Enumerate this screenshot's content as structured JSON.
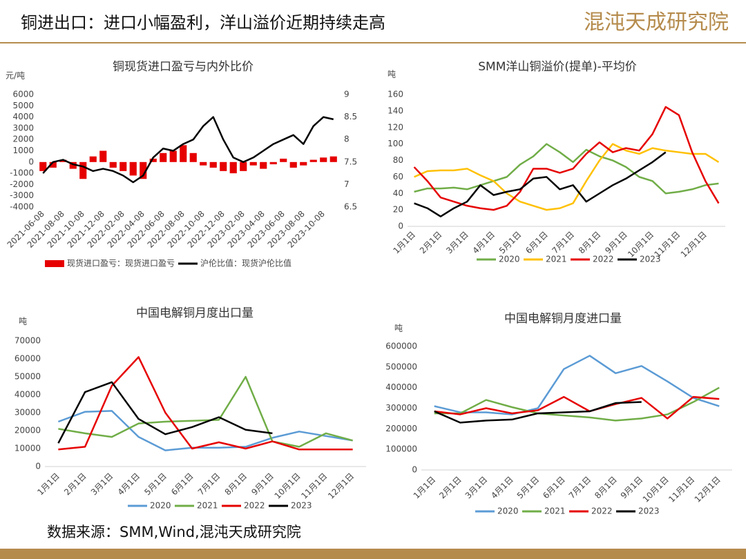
{
  "header": {
    "title": "铜进出口：进口小幅盈利，洋山溢价近期持续走高",
    "logo": "混沌天成研究院"
  },
  "source": "数据来源：SMM,Wind,混沌天成研究院",
  "chart_data": [
    {
      "type": "bar_line",
      "title": "铜现货进口盈亏与内外比价",
      "y_label": "元/吨",
      "categories": [
        "2021-06-08",
        null,
        "2021-08-08",
        null,
        "2021-10-08",
        null,
        "2021-12-08",
        null,
        "2022-02-08",
        null,
        "2022-04-08",
        null,
        "2022-06-08",
        null,
        "2022-08-08",
        null,
        "2022-10-08",
        null,
        "2022-12-08",
        null,
        "2023-02-08",
        null,
        "2023-04-08",
        null,
        "2023-06-08",
        null,
        "2023-08-08",
        null,
        "2023-10-08",
        null
      ],
      "series": [
        {
          "name": "现货进口盈亏：现货进口盈亏",
          "type": "bar",
          "color": "#e60000",
          "values": [
            -800,
            -500,
            200,
            -600,
            -1500,
            500,
            1000,
            -500,
            -800,
            -1200,
            -1500,
            300,
            800,
            1000,
            1500,
            800,
            -300,
            -500,
            -800,
            -1000,
            -800,
            -300,
            -600,
            -200,
            300,
            -500,
            -300,
            200,
            400,
            500
          ]
        },
        {
          "name": "沪伦比值：现货沪伦比值",
          "type": "line",
          "axis": "y2",
          "color": "#000000",
          "values": [
            7.25,
            7.5,
            7.55,
            7.45,
            7.4,
            7.3,
            7.35,
            7.3,
            7.2,
            7.05,
            7.2,
            7.6,
            7.8,
            7.75,
            7.9,
            8.0,
            8.3,
            8.5,
            8.0,
            7.6,
            7.5,
            7.6,
            7.75,
            7.9,
            8.0,
            8.1,
            7.9,
            8.3,
            8.5,
            8.45
          ]
        }
      ],
      "ylim": [
        -4000,
        6000
      ],
      "yticks": [
        -4000,
        -3000,
        -2000,
        -1000,
        0,
        1000,
        2000,
        3000,
        4000,
        5000,
        6000
      ],
      "y2lim": [
        6.5,
        9
      ],
      "y2ticks": [
        6.5,
        7,
        7.5,
        8,
        8.5,
        9
      ]
    },
    {
      "type": "line",
      "title": "SMM洋山铜溢价(提单)-平均价",
      "y_label": "吨",
      "categories": [
        "1月1日",
        null,
        "2月1日",
        null,
        "3月1日",
        null,
        "4月1日",
        null,
        "5月1日",
        null,
        "6月1日",
        null,
        "7月1日",
        null,
        "8月1日",
        null,
        "9月1日",
        null,
        "10月1日",
        null,
        "11月1日",
        null,
        "12月1日",
        null
      ],
      "series": [
        {
          "name": "2020",
          "color": "#70ad47",
          "values": [
            42,
            46,
            46,
            47,
            45,
            50,
            55,
            60,
            75,
            85,
            100,
            90,
            78,
            93,
            85,
            80,
            72,
            60,
            55,
            40,
            42,
            45,
            50,
            52
          ]
        },
        {
          "name": "2021",
          "color": "#ffc000",
          "values": [
            60,
            67,
            68,
            68,
            70,
            62,
            55,
            40,
            30,
            25,
            20,
            22,
            28,
            55,
            80,
            100,
            92,
            88,
            95,
            92,
            90,
            88,
            88,
            78
          ]
        },
        {
          "name": "2022",
          "color": "#e60000",
          "values": [
            72,
            55,
            35,
            30,
            25,
            22,
            20,
            25,
            42,
            70,
            70,
            65,
            70,
            88,
            102,
            90,
            95,
            92,
            112,
            145,
            135,
            90,
            55,
            28
          ]
        },
        {
          "name": "2023",
          "color": "#000000",
          "values": [
            28,
            22,
            12,
            22,
            30,
            50,
            38,
            42,
            45,
            58,
            60,
            45,
            50,
            30,
            40,
            50,
            58,
            68,
            78,
            90,
            null,
            null,
            null,
            null
          ]
        }
      ],
      "ylim": [
        0,
        160
      ],
      "yticks": [
        0,
        20,
        40,
        60,
        80,
        100,
        120,
        140,
        160
      ]
    },
    {
      "type": "line",
      "title": "中国电解铜月度出口量",
      "y_label": "吨",
      "categories": [
        "1月1日",
        "2月1日",
        "3月1日",
        "4月1日",
        "5月1日",
        "6月1日",
        "7月1日",
        "8月1日",
        "9月1日",
        "10月1日",
        "11月1日",
        "12月1日"
      ],
      "series": [
        {
          "name": "2020",
          "color": "#5b9bd5",
          "values": [
            25000,
            30500,
            31000,
            16500,
            9000,
            10500,
            10500,
            11000,
            16000,
            19500,
            17000,
            14500
          ]
        },
        {
          "name": "2021",
          "color": "#70ad47",
          "values": [
            21000,
            18500,
            16500,
            24000,
            25000,
            25500,
            26000,
            50000,
            14000,
            11000,
            18500,
            14500
          ]
        },
        {
          "name": "2022",
          "color": "#e60000",
          "values": [
            9500,
            11000,
            45000,
            61000,
            30000,
            10000,
            13500,
            10000,
            14000,
            9500,
            9500,
            9500
          ]
        },
        {
          "name": "2023",
          "color": "#000000",
          "values": [
            13000,
            41500,
            47000,
            26500,
            18000,
            22000,
            27500,
            20500,
            18500,
            null,
            null,
            null
          ]
        }
      ],
      "ylim": [
        0,
        70000
      ],
      "yticks": [
        0,
        10000,
        20000,
        30000,
        40000,
        50000,
        60000,
        70000
      ]
    },
    {
      "type": "line",
      "title": "中国电解铜月度进口量",
      "y_label": "吨",
      "categories": [
        "1月1日",
        "2月1日",
        "3月1日",
        "4月1日",
        "5月1日",
        "6月1日",
        "7月1日",
        "8月1日",
        "9月1日",
        "10月1日",
        "11月1日",
        "12月1日"
      ],
      "series": [
        {
          "name": "2020",
          "color": "#5b9bd5",
          "values": [
            310000,
            280000,
            280000,
            270000,
            300000,
            490000,
            555000,
            470000,
            505000,
            430000,
            350000,
            310000
          ]
        },
        {
          "name": "2021",
          "color": "#70ad47",
          "values": [
            275000,
            275000,
            340000,
            305000,
            275000,
            265000,
            255000,
            240000,
            250000,
            270000,
            330000,
            400000
          ]
        },
        {
          "name": "2022",
          "color": "#e60000",
          "values": [
            285000,
            270000,
            300000,
            275000,
            290000,
            355000,
            285000,
            320000,
            350000,
            250000,
            355000,
            345000
          ]
        },
        {
          "name": "2023",
          "color": "#000000",
          "values": [
            285000,
            230000,
            240000,
            245000,
            275000,
            280000,
            285000,
            325000,
            330000,
            null,
            null,
            null
          ]
        }
      ],
      "ylim": [
        0,
        600000
      ],
      "yticks": [
        0,
        100000,
        200000,
        300000,
        400000,
        500000,
        600000
      ]
    }
  ]
}
